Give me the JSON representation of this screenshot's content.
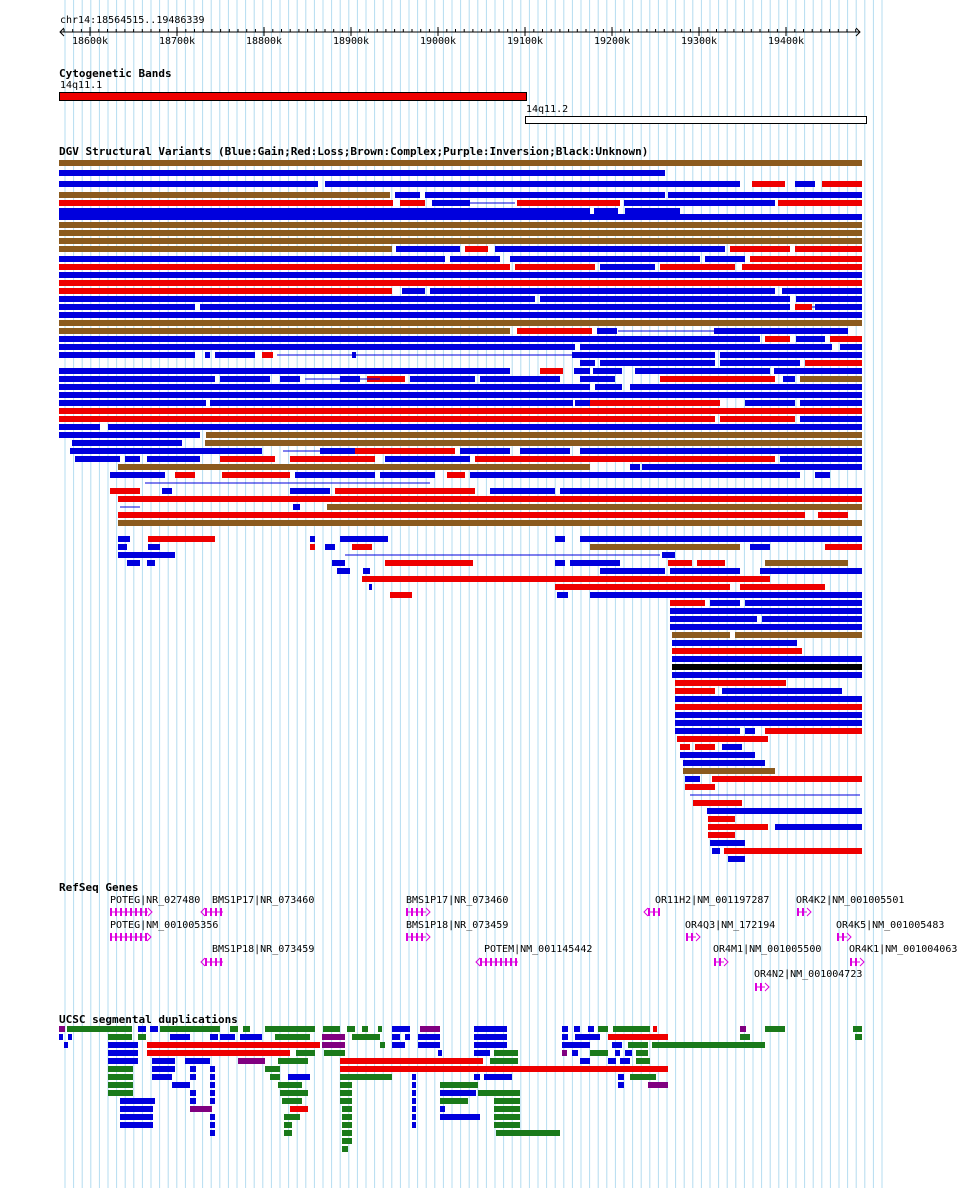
{
  "window": {
    "title": "chr14:18564515..19486339"
  },
  "colors": {
    "gain": "#0000dd",
    "loss": "#ee0000",
    "complex": "#8b5a1e",
    "inversion": "#800080",
    "unknown": "#000000",
    "refseq": "#dd00dd",
    "segdup_green": "#1a7a1a",
    "segdup_purple": "#800080",
    "grid": "#b4dcf0"
  },
  "ruler": {
    "ticks": [
      "18600k",
      "18700k",
      "18800k",
      "18900k",
      "19000k",
      "19100k",
      "19200k",
      "19300k",
      "19400k"
    ]
  },
  "tracks": {
    "cytoband": {
      "title": "Cytogenetic Bands",
      "bands": [
        {
          "name": "14q11.1",
          "style": "filled-red"
        },
        {
          "name": "14q11.2",
          "style": "outline"
        }
      ]
    },
    "dgv": {
      "title": "DGV Structural Variants (Blue:Gain;Red:Loss;Brown:Complex;Purple:Inversion;Black:Unknown)"
    },
    "refseq": {
      "title": "RefSeq Genes",
      "genes": [
        {
          "label": "POTEG|NR_027480"
        },
        {
          "label": "BMS1P17|NR_073460"
        },
        {
          "label": "BMS1P17|NR_073460"
        },
        {
          "label": "OR11H2|NM_001197287"
        },
        {
          "label": "OR4K2|NM_001005501"
        },
        {
          "label": "POTEG|NM_001005356"
        },
        {
          "label": "BMS1P18|NR_073459"
        },
        {
          "label": "OR4Q3|NM_172194"
        },
        {
          "label": "OR4K5|NM_001005483"
        },
        {
          "label": "BMS1P18|NR_073459"
        },
        {
          "label": "POTEM|NM_001145442"
        },
        {
          "label": "OR4M1|NM_001005500"
        },
        {
          "label": "OR4K1|NM_001004063"
        },
        {
          "label": "OR4N2|NM_001004723"
        }
      ]
    },
    "segdup": {
      "title": "UCSC segmental duplications"
    }
  }
}
